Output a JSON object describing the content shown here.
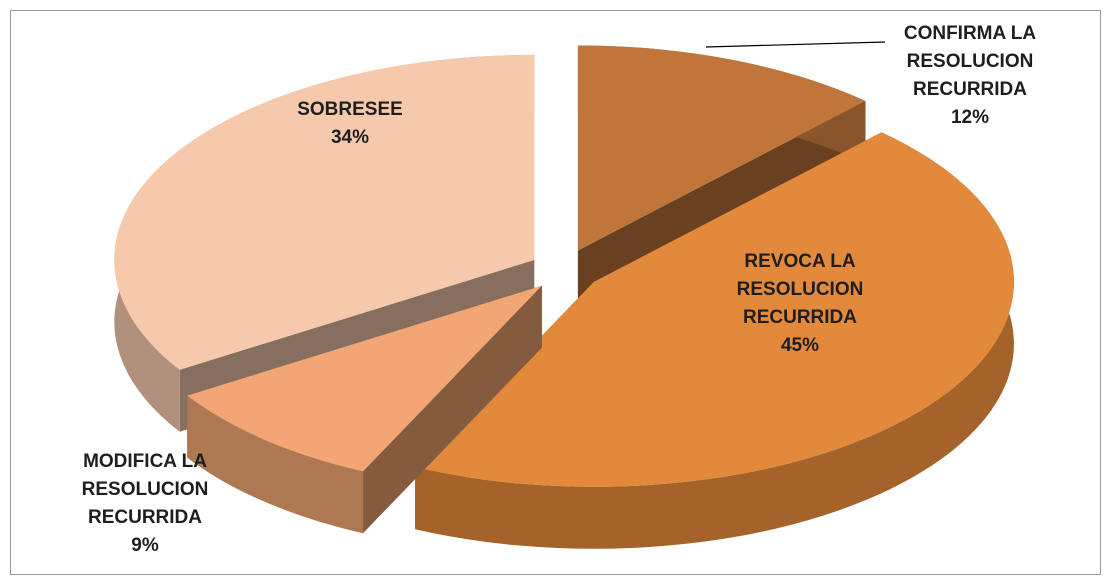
{
  "chart_data": {
    "type": "pie",
    "categories": [
      "CONFIRMA LA RESOLUCION RECURRIDA",
      "REVOCA LA RESOLUCION RECURRIDA",
      "MODIFICA LA RESOLUCION RECURRIDA",
      "SOBRESEE"
    ],
    "values": [
      12,
      45,
      9,
      34
    ],
    "value_labels": [
      "12%",
      "45%",
      "9%",
      "34%"
    ],
    "colors": [
      "#c0763a",
      "#e2893b",
      "#f1a673",
      "#f6c9ad"
    ]
  }
}
